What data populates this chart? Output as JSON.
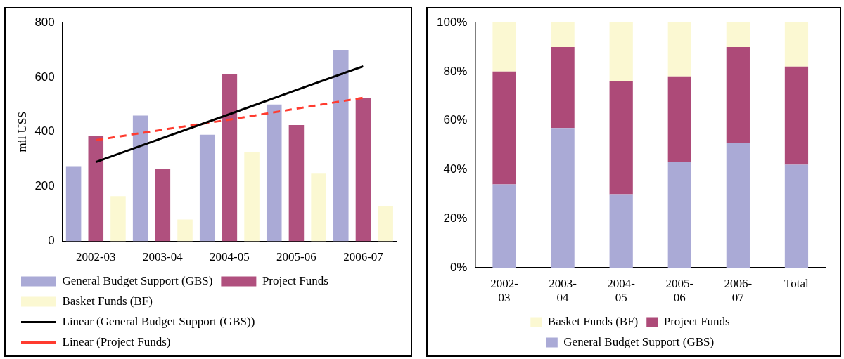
{
  "chart_data": [
    {
      "type": "bar",
      "ylabel": "mil US$",
      "categories": [
        "2002-03",
        "2003-04",
        "2004-05",
        "2005-06",
        "2006-07"
      ],
      "ylim": [
        0,
        800
      ],
      "yticks": [
        0,
        200,
        400,
        600,
        800
      ],
      "grid": false,
      "legend": "bottom",
      "series": [
        {
          "name": "General Budget Support (GBS)",
          "color": "#aaaad6",
          "values": [
            275,
            460,
            390,
            500,
            700
          ]
        },
        {
          "name": "Project Funds",
          "color": "#b0507e",
          "values": [
            385,
            265,
            610,
            425,
            525
          ]
        },
        {
          "name": "Basket Funds (BF)",
          "color": "#fbf8d2",
          "values": [
            165,
            80,
            325,
            250,
            130
          ]
        },
        {
          "name": "Linear (General Budget Support (GBS))",
          "type": "line",
          "color": "#000000",
          "line_style": "solid",
          "values": [
            290,
            378,
            465,
            553,
            640
          ]
        },
        {
          "name": "Linear (Project Funds)",
          "type": "line",
          "color": "#ff3b2f",
          "line_style": "dashed",
          "values": [
            370,
            408,
            445,
            485,
            525
          ]
        }
      ]
    },
    {
      "type": "bar",
      "stacked": true,
      "categories": [
        "2002-03",
        "2003-04",
        "2004-05",
        "2005-06",
        "2006-07",
        "Total"
      ],
      "ylim": [
        0,
        100
      ],
      "yticks": [
        {
          "value": 0,
          "label": "0%"
        },
        {
          "value": 20,
          "label": "20%"
        },
        {
          "value": 40,
          "label": "40%"
        },
        {
          "value": 60,
          "label": "60%"
        },
        {
          "value": 80,
          "label": "80%"
        },
        {
          "value": 100,
          "label": "100%"
        }
      ],
      "grid": false,
      "legend": "bottom",
      "series": [
        {
          "name": "General Budget Support (GBS)",
          "color": "#aaaad6",
          "values": [
            34,
            57,
            30,
            43,
            51,
            42
          ]
        },
        {
          "name": "Project Funds",
          "color": "#ad4a78",
          "values": [
            46,
            33,
            46,
            35,
            39,
            40
          ]
        },
        {
          "name": "Basket Funds (BF)",
          "color": "#fbf8d2",
          "values": [
            20,
            10,
            24,
            22,
            10,
            18
          ]
        }
      ]
    }
  ]
}
